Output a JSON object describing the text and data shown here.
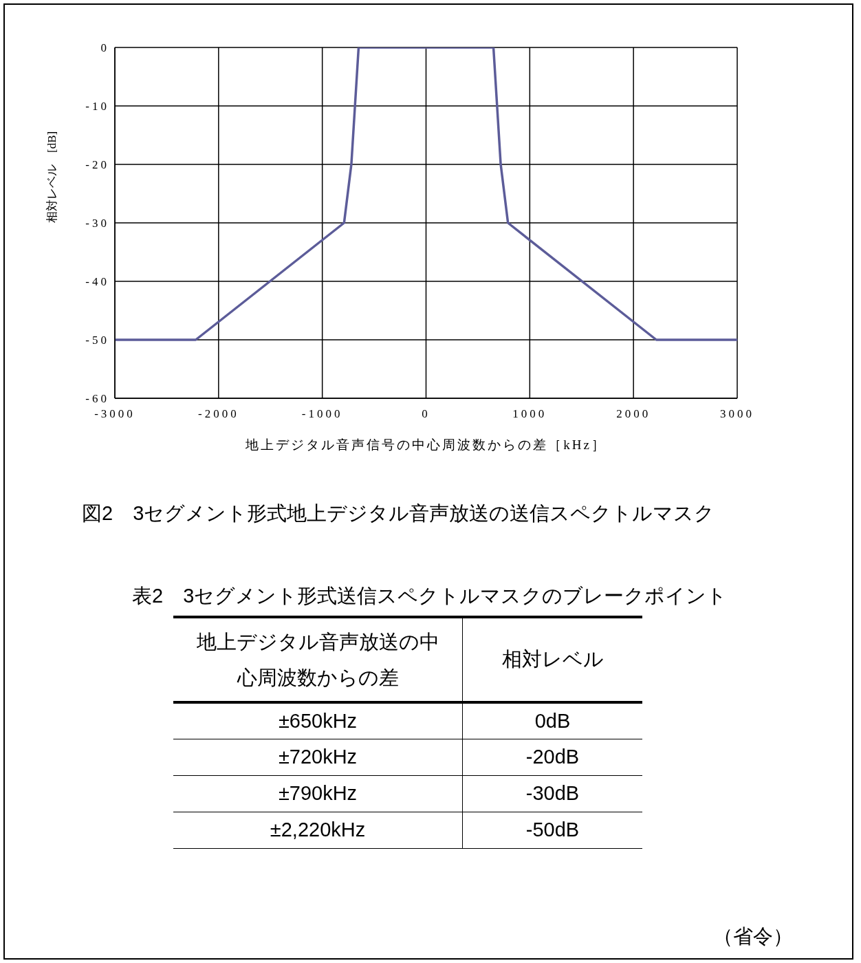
{
  "chart_data": {
    "type": "line",
    "xlabel": "地上デジタル音声信号の中心周波数からの差［kHz］",
    "ylabel": "相対レベル　[dB]",
    "x": [
      -3000,
      -2220,
      -790,
      -720,
      -650,
      650,
      720,
      790,
      2220,
      3000
    ],
    "series": [
      {
        "color": "#5c5c99",
        "values": [
          -50,
          -50,
          -30,
          -20,
          0,
          0,
          -20,
          -30,
          -50,
          -50
        ]
      }
    ],
    "xlim": [
      -3000,
      3000
    ],
    "xticks": [
      -3000,
      -2000,
      -1000,
      0,
      1000,
      2000,
      3000
    ],
    "ylim": [
      -60,
      0
    ],
    "yticks": [
      -60,
      -50,
      -40,
      -30,
      -20,
      -10,
      0
    ],
    "grid": true,
    "marker": "none",
    "line_style": "solid",
    "annotations": [
      "図2　3セグメント形式地上デジタル音声放送の送信スペクトルマスク",
      "表2　3セグメント形式送信スペクトルマスクのブレークポイント",
      "地上デジタル音声放送の中心周波数からの差",
      "相対レベル",
      "±650kHz",
      "0dB",
      "±720kHz",
      "-20dB",
      "±790kHz",
      "-30dB",
      "±2,220kHz",
      "-50dB",
      "（省令）"
    ]
  }
}
